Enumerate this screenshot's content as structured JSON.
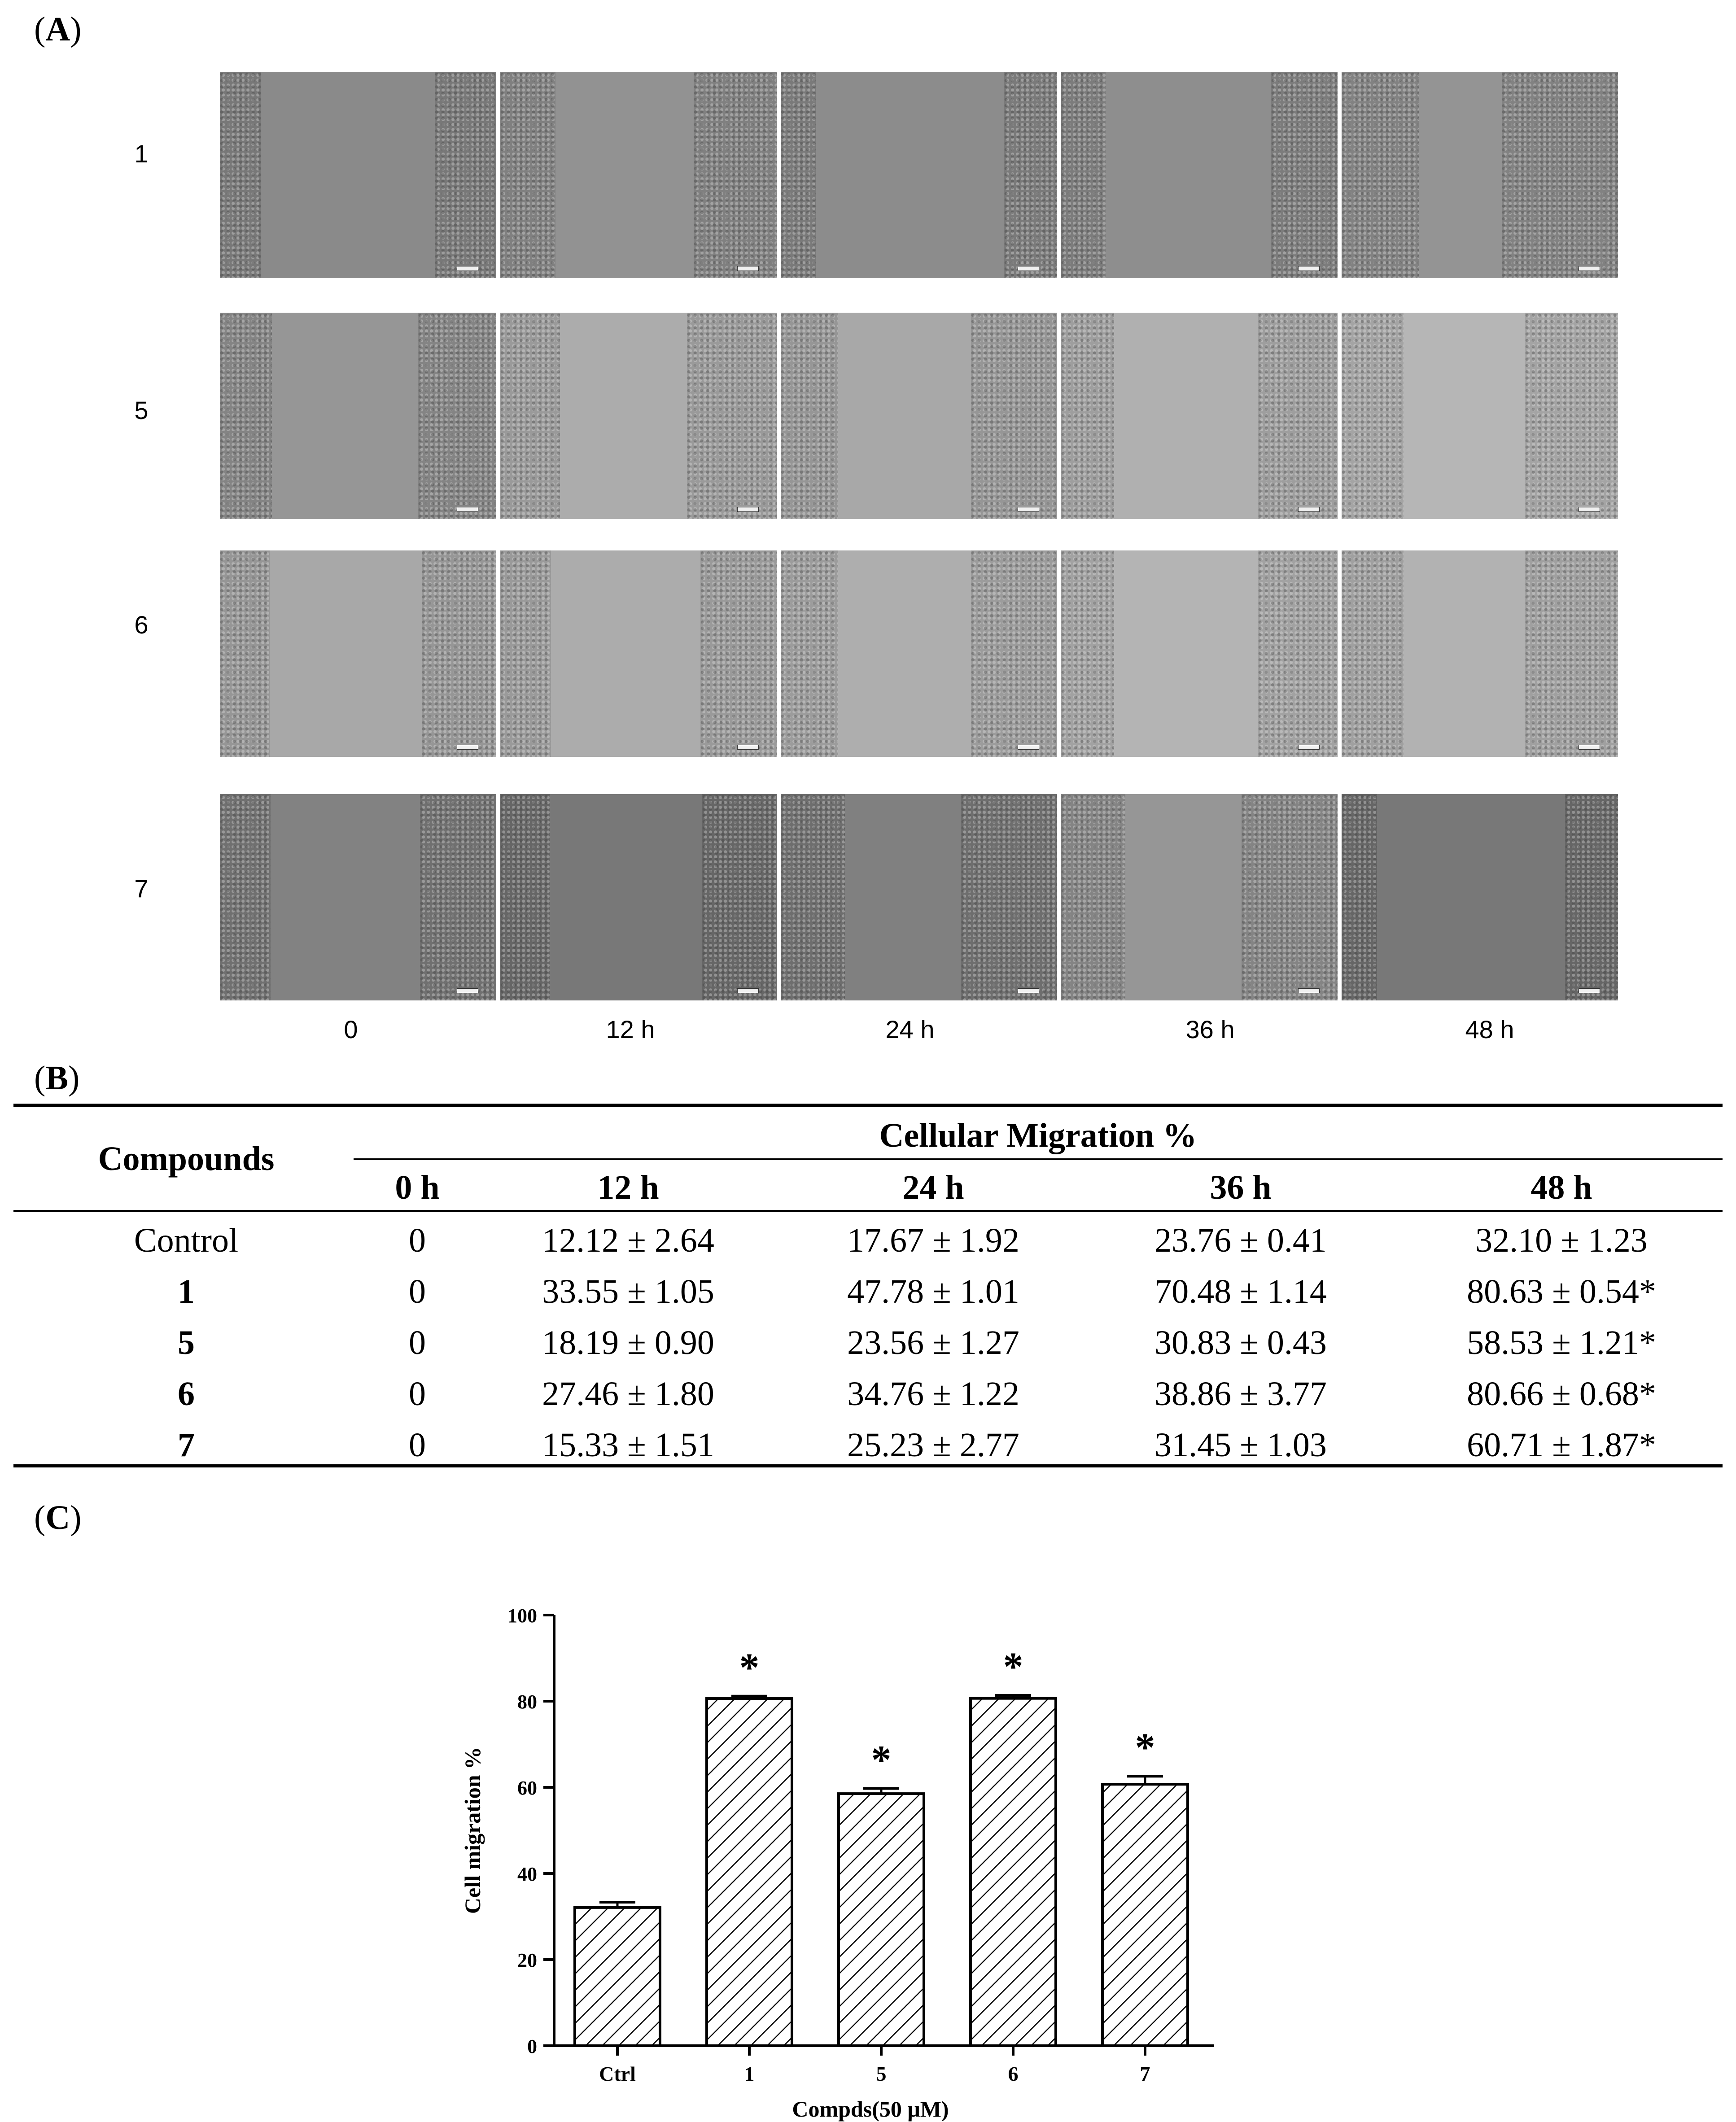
{
  "panel_a": {
    "label_open": "(",
    "label_letter": "A",
    "label_close": ")",
    "row_labels": [
      "1",
      "5",
      "6",
      "7"
    ],
    "time_labels": [
      "0",
      "12 h",
      "24 h",
      "36 h",
      "48 h"
    ]
  },
  "panel_b": {
    "label_open": "(",
    "label_letter": "B",
    "label_close": ")",
    "header_compounds": "Compounds",
    "header_group": "Cellular Migration %",
    "time_headers": [
      "0 h",
      "12 h",
      "24 h",
      "36 h",
      "48 h"
    ],
    "rows": [
      {
        "name": "Control",
        "bold": false,
        "values": [
          "0",
          "12.12 ± 2.64",
          "17.67 ± 1.92",
          "23.76 ± 0.41",
          "32.10 ± 1.23"
        ]
      },
      {
        "name": "1",
        "bold": true,
        "values": [
          "0",
          "33.55 ± 1.05",
          "47.78 ± 1.01",
          "70.48 ± 1.14",
          "80.63 ± 0.54*"
        ]
      },
      {
        "name": "5",
        "bold": true,
        "values": [
          "0",
          "18.19 ± 0.90",
          "23.56 ± 1.27",
          "30.83 ± 0.43",
          "58.53 ± 1.21*"
        ]
      },
      {
        "name": "6",
        "bold": true,
        "values": [
          "0",
          "27.46 ± 1.80",
          "34.76 ± 1.22",
          "38.86 ± 3.77",
          "80.66 ± 0.68*"
        ]
      },
      {
        "name": "7",
        "bold": true,
        "values": [
          "0",
          "15.33 ± 1.51",
          "25.23 ± 2.77",
          "31.45 ± 1.03",
          "60.71 ± 1.87*"
        ]
      }
    ]
  },
  "panel_c": {
    "label_open": "(",
    "label_letter": "C",
    "label_close": ")"
  },
  "chart_data": {
    "type": "bar",
    "title": "",
    "xlabel": "Compds(50 μM)",
    "ylabel": "Cell migration %",
    "categories": [
      "Ctrl",
      "1",
      "5",
      "6",
      "7"
    ],
    "values": [
      32.1,
      80.63,
      58.53,
      80.66,
      60.71
    ],
    "errors": [
      1.23,
      0.54,
      1.21,
      0.68,
      1.87
    ],
    "significance": [
      "",
      "*",
      "*",
      "*",
      "*"
    ],
    "ylim": [
      0,
      100
    ],
    "yticks": [
      0,
      20,
      40,
      60,
      80,
      100
    ],
    "bar_fill": "diagonal-hatch",
    "grid": false,
    "legend": "none"
  }
}
